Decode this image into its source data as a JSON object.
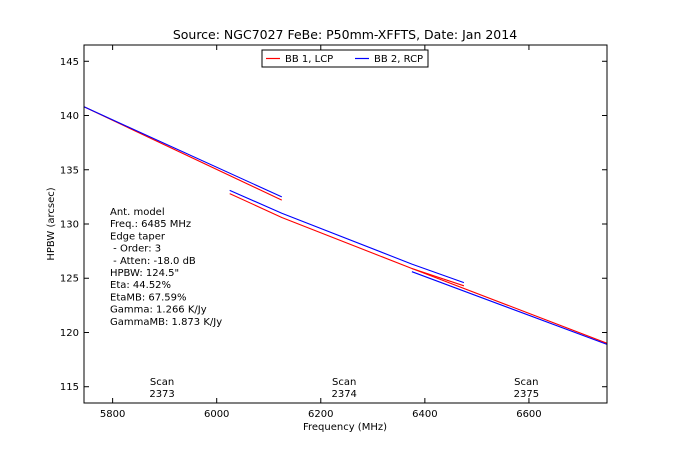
{
  "chart_data": {
    "type": "line",
    "title": "Source: NGC7027 FeBe: P50mm-XFFTS, Date: Jan 2014",
    "xlabel": "Frequency (MHz)",
    "ylabel": "HPBW (arcsec)",
    "xlim": [
      5745,
      6750
    ],
    "ylim": [
      113.5,
      146.5
    ],
    "xticks": [
      5800,
      6000,
      6200,
      6400,
      6600
    ],
    "yticks": [
      115,
      120,
      125,
      130,
      135,
      140,
      145
    ],
    "grid": false,
    "legend_position": "top-center",
    "series": [
      {
        "name": "BB 1, LCP",
        "color": "#ff0000",
        "segments": [
          [
            [
              5745,
              140.8
            ],
            [
              6125,
              132.2
            ]
          ],
          [
            [
              6025,
              132.8
            ],
            [
              6125,
              130.6
            ],
            [
              6375,
              125.9
            ],
            [
              6475,
              124.3
            ]
          ],
          [
            [
              6375,
              125.9
            ],
            [
              6750,
              119.0
            ]
          ]
        ]
      },
      {
        "name": "BB 2, RCP",
        "color": "#0000ff",
        "segments": [
          [
            [
              5745,
              140.8
            ],
            [
              6125,
              132.5
            ]
          ],
          [
            [
              6025,
              133.1
            ],
            [
              6125,
              131.0
            ],
            [
              6375,
              126.3
            ],
            [
              6475,
              124.6
            ]
          ],
          [
            [
              6375,
              125.6
            ],
            [
              6750,
              118.9
            ]
          ]
        ]
      }
    ],
    "annotations": {
      "model_lines": [
        "Ant. model",
        "Freq.: 6485 MHz",
        "Edge taper",
        " - Order: 3",
        " - Atten: -18.0 dB",
        "HPBW: 124.5\"",
        "Eta: 44.52%",
        "EtaMB: 67.59%",
        "Gamma: 1.266 K/Jy",
        "GammaMB: 1.873 K/Jy"
      ],
      "scans": [
        {
          "x": 5895,
          "label": "Scan",
          "number": "2373"
        },
        {
          "x": 6245,
          "label": "Scan",
          "number": "2374"
        },
        {
          "x": 6595,
          "label": "Scan",
          "number": "2375"
        }
      ]
    }
  }
}
